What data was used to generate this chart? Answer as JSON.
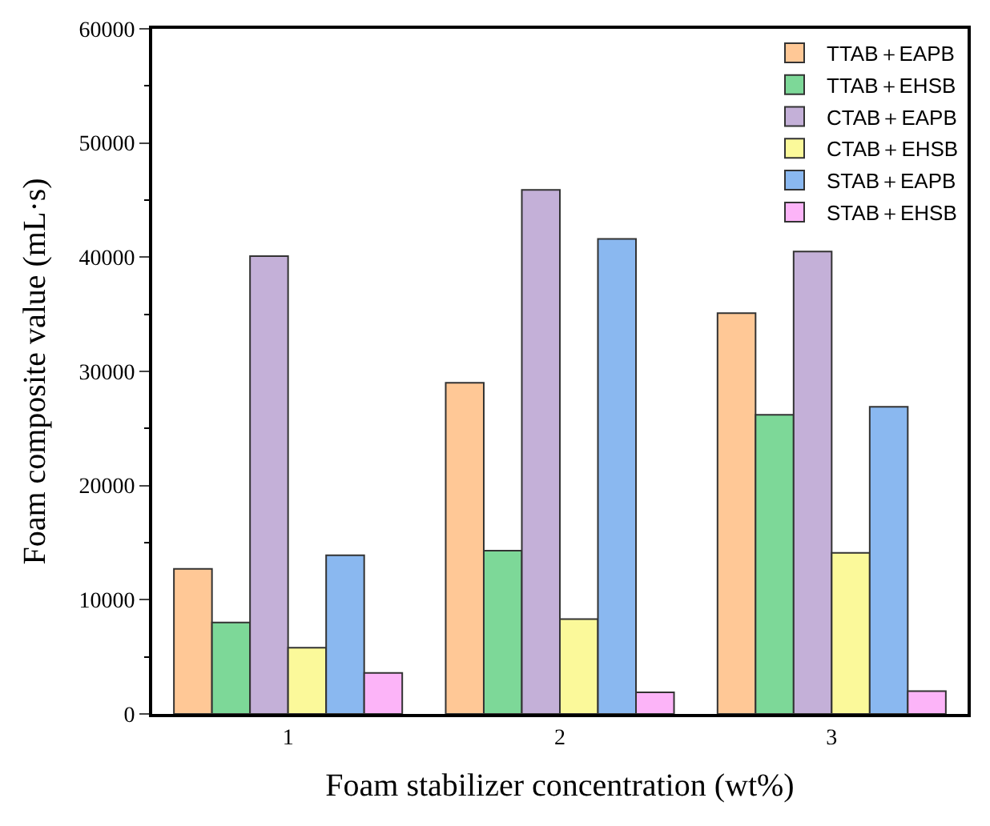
{
  "chart_data": {
    "type": "bar",
    "xlabel": "Foam stabilizer concentration (wt%)",
    "ylabel": "Foam composite value (mL·s)",
    "categories": [
      "1",
      "2",
      "3"
    ],
    "series": [
      {
        "name": "TTAB＋EAPB",
        "color": "#ffc896",
        "values": [
          12700,
          29000,
          35100
        ]
      },
      {
        "name": "TTAB＋EHSB",
        "color": "#7dd898",
        "values": [
          8000,
          14300,
          26200
        ]
      },
      {
        "name": "CTAB＋EAPB",
        "color": "#c4b0d8",
        "values": [
          40100,
          45900,
          40500
        ]
      },
      {
        "name": "CTAB＋EHSB",
        "color": "#fbf99a",
        "values": [
          5800,
          8300,
          14100
        ]
      },
      {
        "name": "STAB＋EAPB",
        "color": "#8ab8f0",
        "values": [
          13900,
          41600,
          26900
        ]
      },
      {
        "name": "STAB＋EHSB",
        "color": "#fcb4f8",
        "values": [
          3600,
          1900,
          2000
        ]
      }
    ],
    "ylim": [
      0,
      60000
    ],
    "yticks": [
      0,
      10000,
      20000,
      30000,
      40000,
      50000,
      60000
    ],
    "legend": "top right"
  }
}
